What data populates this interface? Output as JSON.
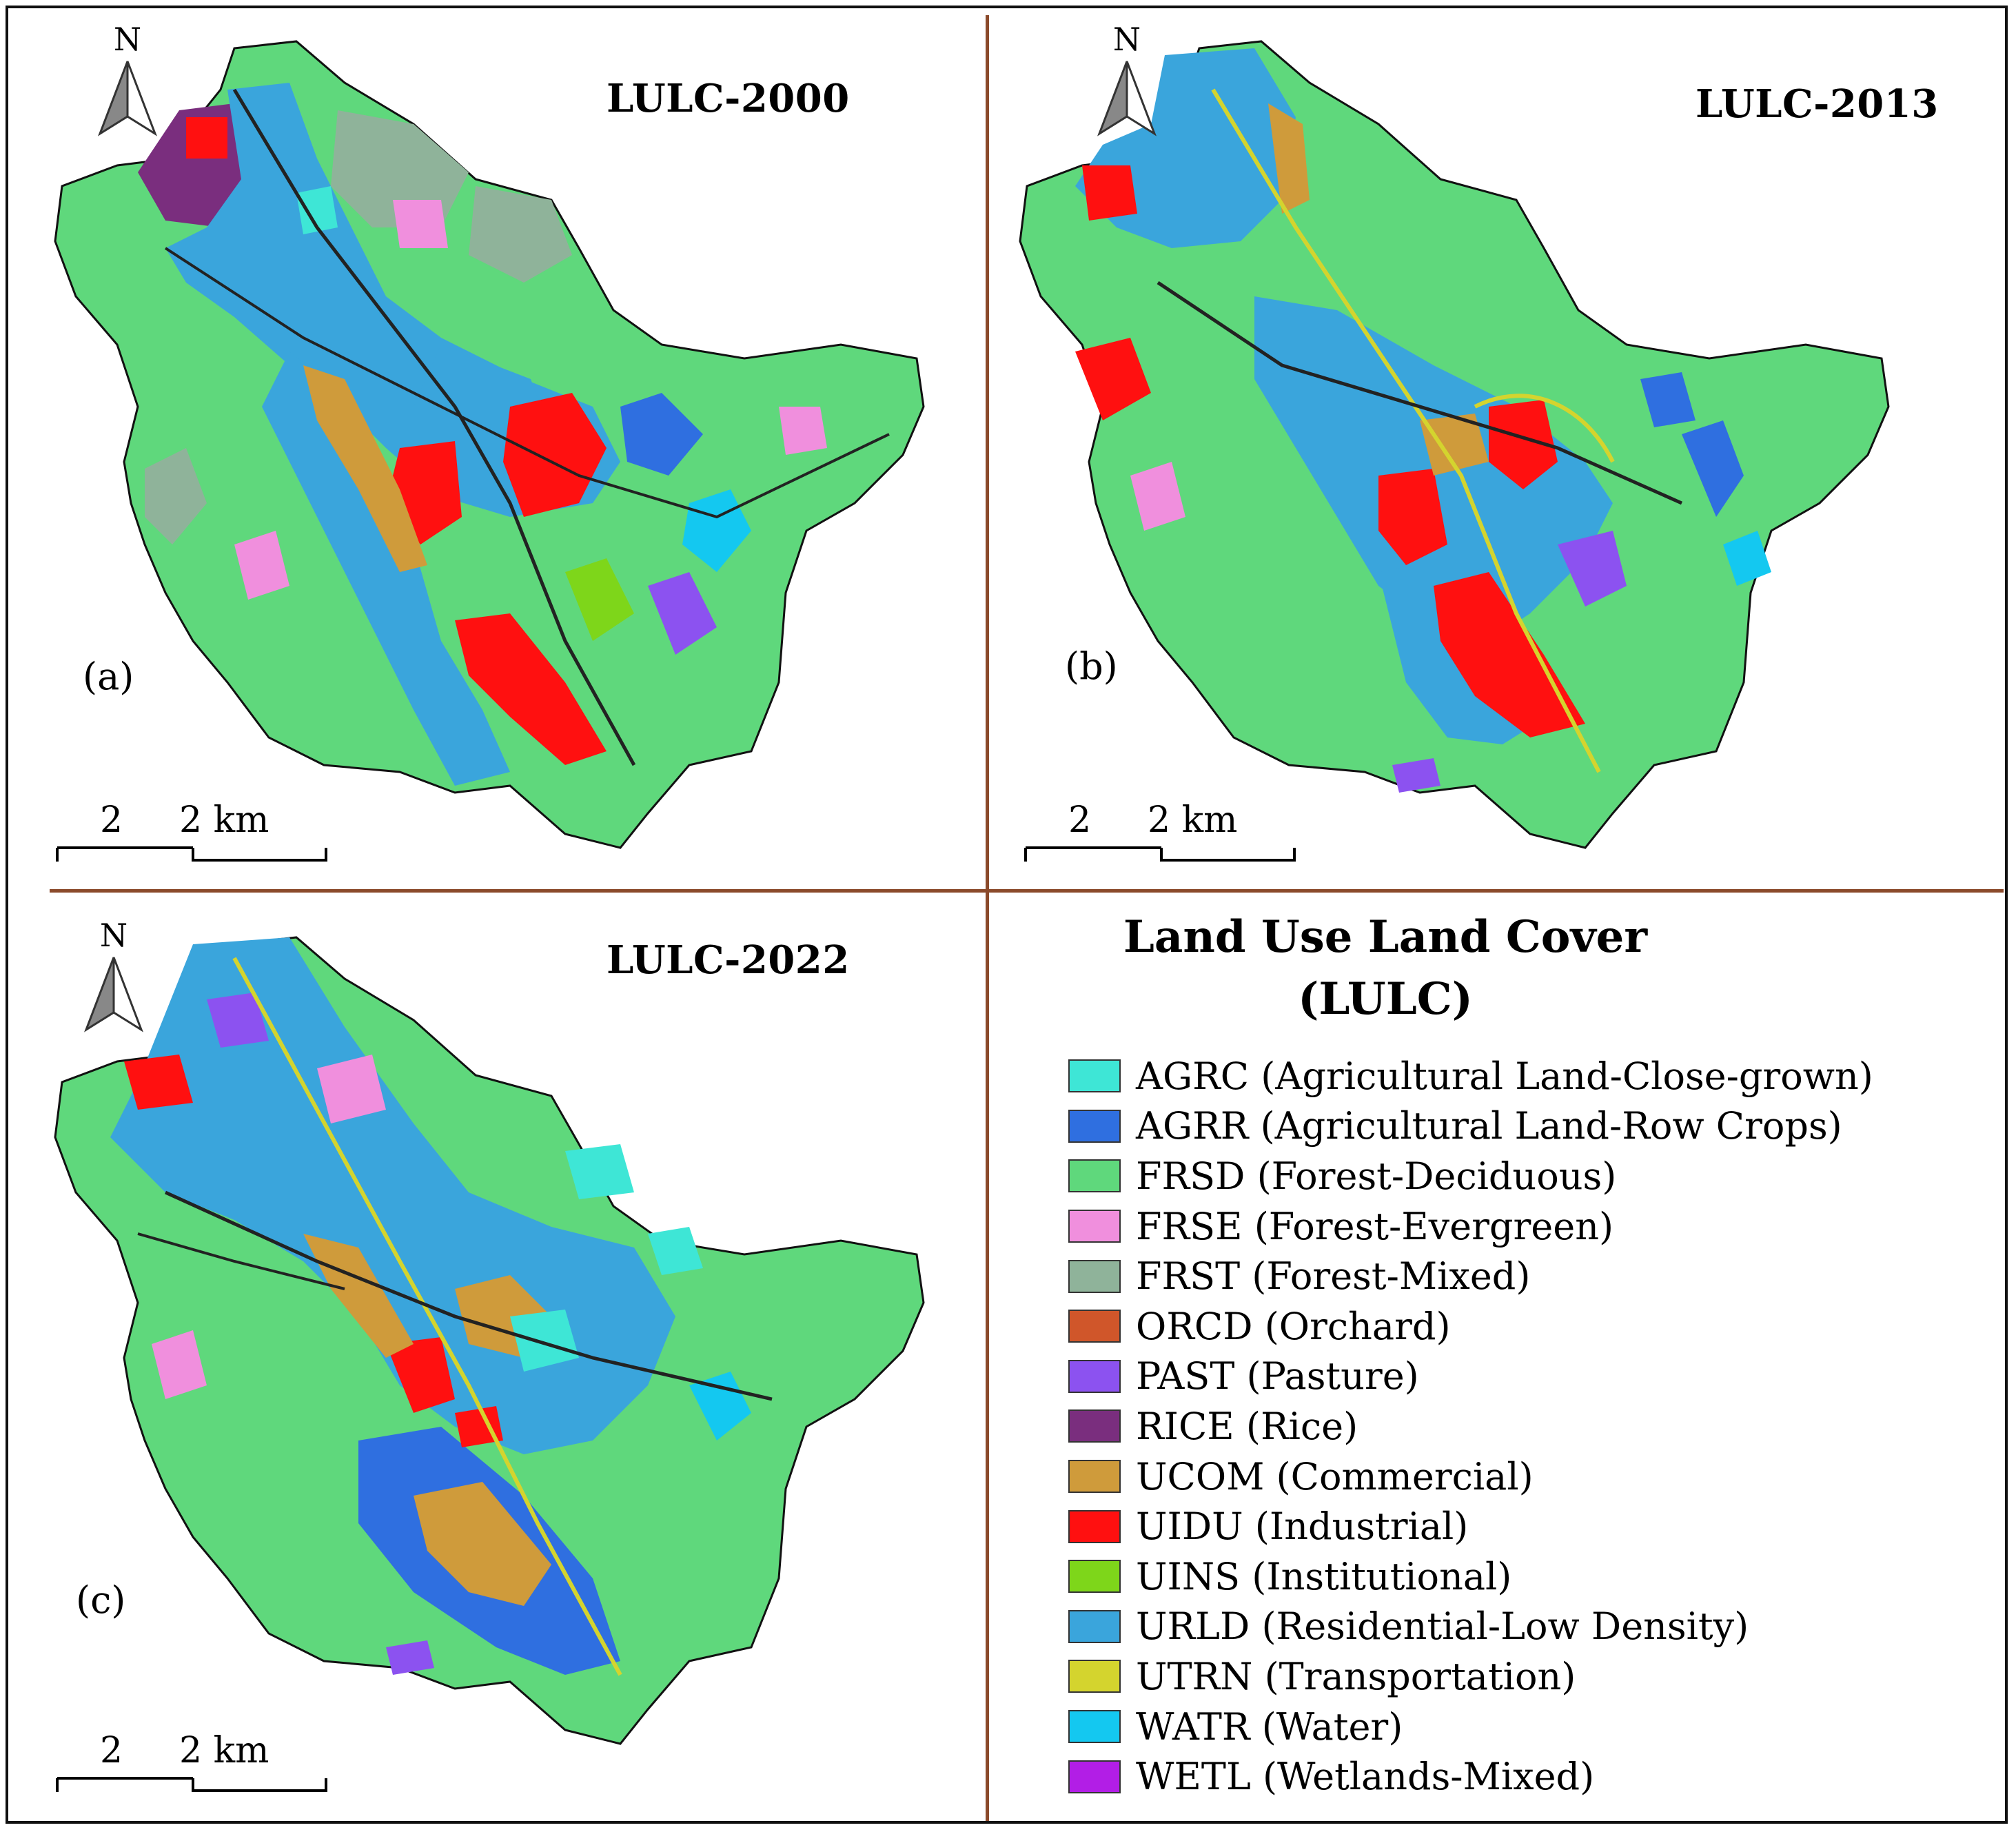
{
  "maps": [
    {
      "title": "LULC-2000",
      "letter": "(a)",
      "north": "N",
      "scale": {
        "left": "2",
        "right": "2 km"
      }
    },
    {
      "title": "LULC-2013",
      "letter": "(b)",
      "north": "N",
      "scale": {
        "left": "2",
        "right": "2 km"
      }
    },
    {
      "title": "LULC-2022",
      "letter": "(c)",
      "north": "N",
      "scale": {
        "left": "2",
        "right": "2 km"
      }
    }
  ],
  "legend": {
    "title_line1": "Land Use Land Cover",
    "title_line2": "(LULC)",
    "items": [
      {
        "label": "AGRC (Agricultural Land-Close-grown)",
        "color": "#3ee6d6"
      },
      {
        "label": "AGRR (Agricultural Land-Row Crops)",
        "color": "#2f6fe0"
      },
      {
        "label": "FRSD (Forest-Deciduous)",
        "color": "#5fd87c"
      },
      {
        "label": "FRSE (Forest-Evergreen)",
        "color": "#f08fdd"
      },
      {
        "label": "FRST (Forest-Mixed)",
        "color": "#8fb39a"
      },
      {
        "label": "ORCD (Orchard)",
        "color": "#d0562a"
      },
      {
        "label": "PAST (Pasture)",
        "color": "#8c52f0"
      },
      {
        "label": "RICE (Rice)",
        "color": "#7a2e7e"
      },
      {
        "label": "UCOM (Commercial)",
        "color": "#cf9b3b"
      },
      {
        "label": "UIDU (Industrial)",
        "color": "#ff1010"
      },
      {
        "label": "UINS (Institutional)",
        "color": "#7ed61a"
      },
      {
        "label": "URLD (Residential-Low Density)",
        "color": "#3aa5dc"
      },
      {
        "label": "UTRN (Transportation)",
        "color": "#d4d42e"
      },
      {
        "label": "WATR (Water)",
        "color": "#14c8f0"
      },
      {
        "label": "WETL (Wetlands-Mixed)",
        "color": "#b21ee6"
      }
    ]
  }
}
